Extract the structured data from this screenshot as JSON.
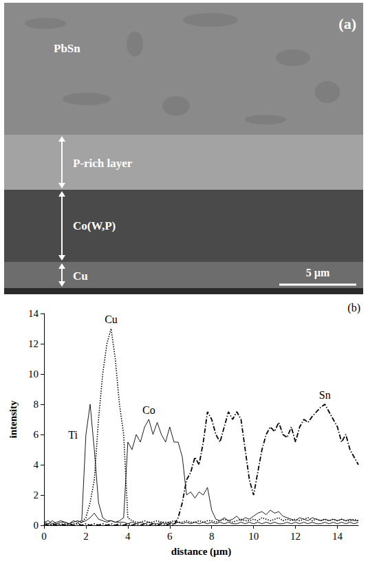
{
  "panel_a": {
    "label": "(a)",
    "layers": [
      "PbSn",
      "P-rich layer",
      "Co(W,P)",
      "Cu"
    ],
    "scale_bar": "5 µm"
  },
  "chart_data": {
    "type": "line",
    "title": "(b)",
    "x_label": "distance (µm)",
    "y_label": "intensity",
    "xlim": [
      0,
      15
    ],
    "xticks": [
      0,
      2,
      4,
      6,
      8,
      10,
      12,
      14
    ],
    "ylim": [
      0,
      14
    ],
    "yticks": [
      0,
      2,
      4,
      6,
      8,
      10,
      12,
      14
    ],
    "grid": false,
    "x": [
      0,
      0.2,
      0.4,
      0.6,
      0.8,
      1,
      1.2,
      1.4,
      1.6,
      1.8,
      2,
      2.2,
      2.4,
      2.6,
      2.8,
      3,
      3.2,
      3.4,
      3.6,
      3.8,
      4,
      4.2,
      4.4,
      4.6,
      4.8,
      5,
      5.2,
      5.4,
      5.6,
      5.8,
      6,
      6.2,
      6.4,
      6.6,
      6.8,
      7,
      7.2,
      7.4,
      7.6,
      7.8,
      8,
      8.2,
      8.4,
      8.6,
      8.8,
      9,
      9.2,
      9.4,
      9.6,
      9.8,
      10,
      10.2,
      10.4,
      10.6,
      10.8,
      11,
      11.2,
      11.4,
      11.6,
      11.8,
      12,
      12.2,
      12.4,
      12.6,
      12.8,
      13,
      13.2,
      13.4,
      13.6,
      13.8,
      14,
      14.2,
      14.4,
      14.6,
      14.8,
      15
    ],
    "series": [
      {
        "name": "Ti",
        "color": "#000000",
        "line_style": "solid",
        "values": [
          0.2,
          0.1,
          0.3,
          0.1,
          0.2,
          0.2,
          0.1,
          0.3,
          0.2,
          0.3,
          6,
          8,
          5,
          1.5,
          0.5,
          0.3,
          0.3,
          0.2,
          0.2,
          0.2,
          0.1,
          0.2,
          0.1,
          0.2,
          0.1,
          0.2,
          0.1,
          0.1,
          0.2,
          0.1,
          0.2,
          0.1,
          0.2,
          0.1,
          0.2,
          0.1,
          0.2,
          0.1,
          0.2,
          0.1,
          0.2,
          0.1,
          0.2,
          0.1,
          0.2,
          0.1,
          0.1,
          0.2,
          0.1,
          0.2,
          0.1,
          0.2,
          0.1,
          0.2,
          0.1,
          0.2,
          0.1,
          0.1,
          0.2,
          0.1,
          0.2,
          0.1,
          0.2,
          0.1,
          0.2,
          0.1,
          0.1,
          0.2,
          0.1,
          0.2,
          0.1,
          0.2,
          0.1,
          0.2,
          0.1,
          0.2
        ]
      },
      {
        "name": "Cu",
        "color": "#000000",
        "line_style": "dotted",
        "values": [
          0,
          0.1,
          0,
          0.1,
          0,
          0.1,
          0,
          0.1,
          0.1,
          0.2,
          0.5,
          1.5,
          3,
          7,
          10,
          12,
          13,
          11,
          8,
          6,
          0.5,
          0.3,
          0.2,
          0.2,
          0.3,
          0.2,
          0.2,
          0.3,
          0.2,
          0.2,
          0.2,
          0.3,
          0.2,
          0.2,
          0.3,
          0.2,
          0.2,
          0.3,
          0.2,
          0.3,
          0.3,
          0.2,
          0.3,
          0.4,
          0.3,
          0.2,
          0.3,
          0.4,
          0.3,
          0.3,
          0.4,
          0.3,
          0.5,
          0.4,
          0.3,
          0.4,
          0.5,
          0.3,
          0.4,
          0.3,
          0.4,
          0.3,
          0.4,
          0.5,
          0.3,
          0.4,
          0.3,
          0.4,
          0.3,
          0.4,
          0.3,
          0.4,
          0.3,
          0.3,
          0.4,
          0.3
        ]
      },
      {
        "name": "Co",
        "color": "#000000",
        "line_style": "solid",
        "values": [
          0.2,
          0.3,
          0.1,
          0.2,
          0.3,
          0.2,
          0.1,
          0.2,
          0.3,
          0.2,
          0.3,
          0.5,
          0.8,
          0.4,
          0.3,
          0.2,
          0.3,
          0.2,
          0.3,
          0.5,
          5.5,
          5,
          6,
          5.5,
          6.5,
          7,
          6,
          6.8,
          6,
          5.5,
          6.5,
          5.5,
          5.5,
          4.5,
          2,
          2.2,
          1.8,
          2.2,
          2,
          2.5,
          1,
          0.4,
          0.3,
          0.5,
          0.3,
          0.4,
          0.6,
          0.3,
          0.5,
          0.4,
          0.6,
          0.8,
          0.9,
          0.7,
          1,
          0.8,
          0.9,
          0.6,
          0.5,
          0.4,
          0.3,
          0.5,
          0.4,
          0.3,
          0.5,
          0.4,
          0.3,
          0.4,
          0.3,
          0.4,
          0.3,
          0.4,
          0.3,
          0.4,
          0.3,
          0.3
        ]
      },
      {
        "name": "Sn",
        "color": "#000000",
        "line_style": "dashdot",
        "values": [
          0.1,
          0,
          0.1,
          0,
          0.1,
          0,
          0.1,
          0,
          0.1,
          0,
          0.1,
          0,
          0.1,
          0,
          0.1,
          0,
          0.1,
          0,
          0.1,
          0,
          0.1,
          0,
          0.1,
          0,
          0.1,
          0,
          0.1,
          0,
          0.1,
          0,
          0.1,
          0,
          0.5,
          1.5,
          3,
          3.5,
          4.5,
          4,
          5.5,
          7.5,
          7,
          6,
          5.5,
          6.5,
          7.5,
          7,
          7.5,
          7,
          5,
          3,
          2,
          3.5,
          5,
          6,
          6.5,
          6.2,
          6.8,
          6,
          5.8,
          6.5,
          5.5,
          6.5,
          7,
          6.8,
          7.2,
          7.5,
          7.8,
          8,
          7.5,
          7,
          6.5,
          5.5,
          6,
          5,
          4.5,
          4
        ]
      }
    ]
  }
}
